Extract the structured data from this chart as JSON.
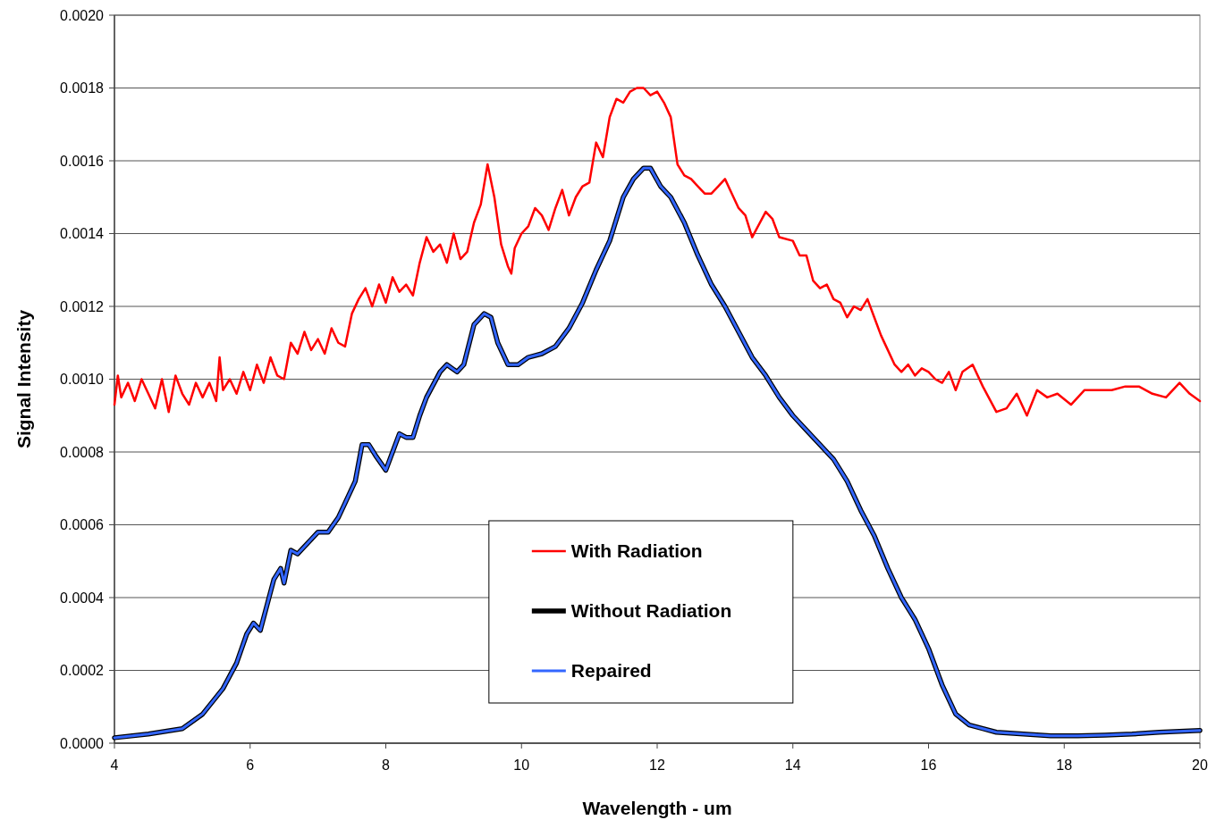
{
  "chart_data": {
    "type": "line",
    "xlabel": "Wavelength - um",
    "ylabel": "Signal Intensity",
    "xlim": [
      4,
      20
    ],
    "xticks": [
      4,
      6,
      8,
      10,
      12,
      14,
      16,
      18,
      20
    ],
    "ylim": [
      0,
      0.002
    ],
    "yticks": [
      {
        "value": 0,
        "label": "0.0000"
      },
      {
        "value": 0.0002,
        "label": "0.0002"
      },
      {
        "value": 0.0004,
        "label": "0.0004"
      },
      {
        "value": 0.0006,
        "label": "0.0006"
      },
      {
        "value": 0.0008,
        "label": "0.0008"
      },
      {
        "value": 0.001,
        "label": "0.0010"
      },
      {
        "value": 0.0012,
        "label": "0.0012"
      },
      {
        "value": 0.0014,
        "label": "0.0014"
      },
      {
        "value": 0.0016,
        "label": "0.0016"
      },
      {
        "value": 0.0018,
        "label": "0.0018"
      },
      {
        "value": 0.002,
        "label": "0.0020"
      }
    ],
    "grid": "y",
    "legend": "bottom",
    "marker": "none",
    "line_style": "solid",
    "series": [
      {
        "name": "With Radiation",
        "color": "#ff0000",
        "x": [
          4.0,
          4.05,
          4.1,
          4.2,
          4.3,
          4.4,
          4.5,
          4.6,
          4.7,
          4.8,
          4.9,
          5.0,
          5.1,
          5.2,
          5.3,
          5.4,
          5.5,
          5.55,
          5.6,
          5.7,
          5.8,
          5.9,
          6.0,
          6.1,
          6.2,
          6.3,
          6.4,
          6.5,
          6.6,
          6.7,
          6.8,
          6.9,
          7.0,
          7.1,
          7.2,
          7.3,
          7.4,
          7.5,
          7.6,
          7.7,
          7.8,
          7.9,
          8.0,
          8.1,
          8.2,
          8.3,
          8.4,
          8.5,
          8.6,
          8.7,
          8.8,
          8.9,
          9.0,
          9.1,
          9.2,
          9.3,
          9.4,
          9.5,
          9.6,
          9.7,
          9.8,
          9.85,
          9.9,
          10.0,
          10.1,
          10.2,
          10.3,
          10.4,
          10.5,
          10.6,
          10.7,
          10.8,
          10.9,
          11.0,
          11.1,
          11.2,
          11.3,
          11.4,
          11.5,
          11.6,
          11.7,
          11.8,
          11.9,
          12.0,
          12.1,
          12.2,
          12.3,
          12.4,
          12.5,
          12.6,
          12.7,
          12.8,
          12.9,
          13.0,
          13.1,
          13.2,
          13.3,
          13.4,
          13.6,
          13.7,
          13.8,
          14.0,
          14.1,
          14.2,
          14.3,
          14.4,
          14.5,
          14.6,
          14.7,
          14.8,
          14.9,
          15.0,
          15.1,
          15.2,
          15.3,
          15.4,
          15.5,
          15.6,
          15.7,
          15.8,
          15.9,
          16.0,
          16.1,
          16.2,
          16.3,
          16.4,
          16.5,
          16.65,
          16.8,
          17.0,
          17.15,
          17.3,
          17.45,
          17.6,
          17.75,
          17.9,
          18.1,
          18.3,
          18.5,
          18.7,
          18.9,
          19.1,
          19.3,
          19.5,
          19.7,
          19.85,
          20.0
        ],
        "values": [
          0.00093,
          0.00101,
          0.00095,
          0.00099,
          0.00094,
          0.001,
          0.00096,
          0.00092,
          0.001,
          0.00091,
          0.00101,
          0.00096,
          0.00093,
          0.00099,
          0.00095,
          0.00099,
          0.00094,
          0.00106,
          0.00097,
          0.001,
          0.00096,
          0.00102,
          0.00097,
          0.00104,
          0.00099,
          0.00106,
          0.00101,
          0.001,
          0.0011,
          0.00107,
          0.00113,
          0.00108,
          0.00111,
          0.00107,
          0.00114,
          0.0011,
          0.00109,
          0.00118,
          0.00122,
          0.00125,
          0.0012,
          0.00126,
          0.00121,
          0.00128,
          0.00124,
          0.00126,
          0.00123,
          0.00132,
          0.00139,
          0.00135,
          0.00137,
          0.00132,
          0.0014,
          0.00133,
          0.00135,
          0.00143,
          0.00148,
          0.00159,
          0.0015,
          0.00137,
          0.00131,
          0.00129,
          0.00136,
          0.0014,
          0.00142,
          0.00147,
          0.00145,
          0.00141,
          0.00147,
          0.00152,
          0.00145,
          0.0015,
          0.00153,
          0.00154,
          0.00165,
          0.00161,
          0.00172,
          0.00177,
          0.00176,
          0.00179,
          0.0018,
          0.0018,
          0.00178,
          0.00179,
          0.00176,
          0.00172,
          0.00159,
          0.00156,
          0.00155,
          0.00153,
          0.00151,
          0.00151,
          0.00153,
          0.00155,
          0.00151,
          0.00147,
          0.00145,
          0.00139,
          0.00146,
          0.00144,
          0.00139,
          0.00138,
          0.00134,
          0.00134,
          0.00127,
          0.00125,
          0.00126,
          0.00122,
          0.00121,
          0.00117,
          0.0012,
          0.00119,
          0.00122,
          0.00117,
          0.00112,
          0.00108,
          0.00104,
          0.00102,
          0.00104,
          0.00101,
          0.00103,
          0.00102,
          0.001,
          0.00099,
          0.00102,
          0.00097,
          0.00102,
          0.00104,
          0.00098,
          0.00091,
          0.00092,
          0.00096,
          0.0009,
          0.00097,
          0.00095,
          0.00096,
          0.00093,
          0.00097,
          0.00097,
          0.00097,
          0.00098,
          0.00098,
          0.00096,
          0.00095,
          0.00099,
          0.00096,
          0.00094
        ]
      },
      {
        "name": "Without Radiation",
        "color": "#000000",
        "x": [
          4.0,
          4.5,
          5.0,
          5.3,
          5.6,
          5.8,
          5.95,
          6.05,
          6.15,
          6.25,
          6.35,
          6.45,
          6.5,
          6.6,
          6.7,
          6.8,
          6.9,
          7.0,
          7.15,
          7.3,
          7.4,
          7.55,
          7.65,
          7.75,
          7.85,
          8.0,
          8.1,
          8.2,
          8.3,
          8.4,
          8.5,
          8.6,
          8.8,
          8.9,
          9.05,
          9.15,
          9.3,
          9.45,
          9.55,
          9.65,
          9.8,
          9.95,
          10.1,
          10.3,
          10.5,
          10.7,
          10.9,
          11.1,
          11.3,
          11.5,
          11.65,
          11.8,
          11.9,
          12.05,
          12.2,
          12.4,
          12.6,
          12.8,
          13.0,
          13.2,
          13.4,
          13.6,
          13.8,
          14.0,
          14.2,
          14.4,
          14.6,
          14.8,
          15.0,
          15.2,
          15.4,
          15.6,
          15.8,
          16.0,
          16.2,
          16.4,
          16.6,
          16.8,
          17.0,
          17.4,
          17.8,
          18.2,
          18.6,
          19.0,
          19.4,
          20.0
        ],
        "values": [
          1.5e-05,
          2.5e-05,
          4e-05,
          8e-05,
          0.00015,
          0.00022,
          0.0003,
          0.00033,
          0.00031,
          0.00038,
          0.00045,
          0.00048,
          0.00044,
          0.00053,
          0.00052,
          0.00054,
          0.00056,
          0.00058,
          0.00058,
          0.00062,
          0.00066,
          0.00072,
          0.00082,
          0.00082,
          0.00079,
          0.00075,
          0.0008,
          0.00085,
          0.00084,
          0.00084,
          0.0009,
          0.00095,
          0.00102,
          0.00104,
          0.00102,
          0.00104,
          0.00115,
          0.00118,
          0.00117,
          0.0011,
          0.00104,
          0.00104,
          0.00106,
          0.00107,
          0.00109,
          0.00114,
          0.00121,
          0.0013,
          0.00138,
          0.0015,
          0.00155,
          0.00158,
          0.00158,
          0.00153,
          0.0015,
          0.00143,
          0.00134,
          0.00126,
          0.0012,
          0.00113,
          0.00106,
          0.00101,
          0.00095,
          0.0009,
          0.00086,
          0.00082,
          0.00078,
          0.00072,
          0.00064,
          0.00057,
          0.00048,
          0.0004,
          0.00034,
          0.00026,
          0.00016,
          8e-05,
          5e-05,
          4e-05,
          3e-05,
          2.5e-05,
          2e-05,
          2e-05,
          2.2e-05,
          2.5e-05,
          3e-05,
          3.5e-05
        ]
      },
      {
        "name": "Repaired",
        "color": "#3366ff",
        "x": [
          4.0,
          4.5,
          5.0,
          5.3,
          5.6,
          5.8,
          5.95,
          6.05,
          6.15,
          6.25,
          6.35,
          6.45,
          6.5,
          6.6,
          6.7,
          6.8,
          6.9,
          7.0,
          7.15,
          7.3,
          7.4,
          7.55,
          7.65,
          7.75,
          7.85,
          8.0,
          8.1,
          8.2,
          8.3,
          8.4,
          8.5,
          8.6,
          8.8,
          8.9,
          9.05,
          9.15,
          9.3,
          9.45,
          9.55,
          9.65,
          9.8,
          9.95,
          10.1,
          10.3,
          10.5,
          10.7,
          10.9,
          11.1,
          11.3,
          11.5,
          11.65,
          11.8,
          11.9,
          12.05,
          12.2,
          12.4,
          12.6,
          12.8,
          13.0,
          13.2,
          13.4,
          13.6,
          13.8,
          14.0,
          14.2,
          14.4,
          14.6,
          14.8,
          15.0,
          15.2,
          15.4,
          15.6,
          15.8,
          16.0,
          16.2,
          16.4,
          16.6,
          16.8,
          17.0,
          17.4,
          17.8,
          18.2,
          18.6,
          19.0,
          19.4,
          20.0
        ],
        "values": [
          1.5e-05,
          2.5e-05,
          4e-05,
          8e-05,
          0.00015,
          0.00022,
          0.0003,
          0.00033,
          0.00031,
          0.00038,
          0.00045,
          0.00048,
          0.00044,
          0.00053,
          0.00052,
          0.00054,
          0.00056,
          0.00058,
          0.00058,
          0.00062,
          0.00066,
          0.00072,
          0.00082,
          0.00082,
          0.00079,
          0.00075,
          0.0008,
          0.00085,
          0.00084,
          0.00084,
          0.0009,
          0.00095,
          0.00102,
          0.00104,
          0.00102,
          0.00104,
          0.00115,
          0.00118,
          0.00117,
          0.0011,
          0.00104,
          0.00104,
          0.00106,
          0.00107,
          0.00109,
          0.00114,
          0.00121,
          0.0013,
          0.00138,
          0.0015,
          0.00155,
          0.00158,
          0.00158,
          0.00153,
          0.0015,
          0.00143,
          0.00134,
          0.00126,
          0.0012,
          0.00113,
          0.00106,
          0.00101,
          0.00095,
          0.0009,
          0.00086,
          0.00082,
          0.00078,
          0.00072,
          0.00064,
          0.00057,
          0.00048,
          0.0004,
          0.00034,
          0.00026,
          0.00016,
          8e-05,
          5e-05,
          4e-05,
          3e-05,
          2.5e-05,
          2e-05,
          2e-05,
          2.2e-05,
          2.5e-05,
          3e-05,
          3.5e-05
        ]
      }
    ]
  }
}
